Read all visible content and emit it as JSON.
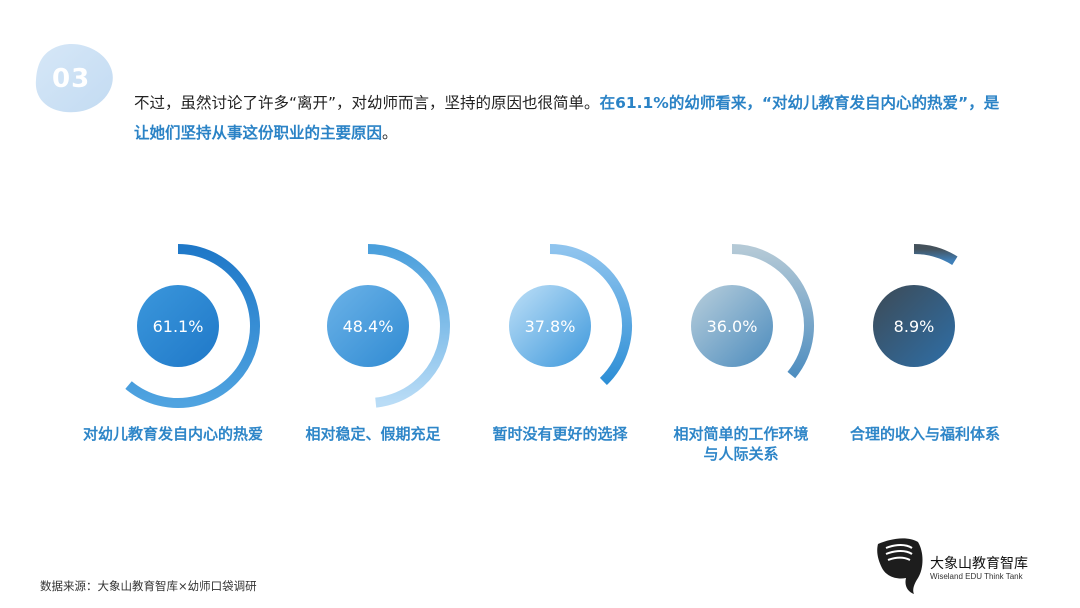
{
  "section_number": "03",
  "intro": {
    "plain_1": "不过，虽然讨论了许多“离开”，对幼师而言，坚持的原因也很简单。",
    "highlight_1": "在61.1%的幼师看来，“对幼儿教育发自内心的热爱”，是让她们坚持从事这份职业的主要原因",
    "plain_2": "。"
  },
  "chart_data": {
    "type": "radial-progress",
    "categories": [
      "对幼儿教育发自内心的热爱",
      "相对稳定、假期充足",
      "暂时没有更好的选择",
      "相对简单的工作环境与人际关系",
      "合理的收入与福利体系"
    ],
    "values": [
      61.1,
      48.4,
      37.8,
      36.0,
      8.9
    ],
    "value_labels": [
      "61.1%",
      "48.4%",
      "37.8%",
      "36.0%",
      "8.9%"
    ],
    "unit": "%",
    "colors": {
      "ring_gradients": [
        [
          "#1f78c8",
          "#4fa3e0"
        ],
        [
          "#4a9fdc",
          "#b9dcf6"
        ],
        [
          "#8fc4ee",
          "#2e8fd6"
        ],
        [
          "#b4c9d6",
          "#4f8ec0"
        ],
        [
          "#45525c",
          "#3f7fb8"
        ]
      ],
      "circle_gradients": [
        [
          "#3b97dc",
          "#1f78c8"
        ],
        [
          "#6cb3e8",
          "#2f8ad2"
        ],
        [
          "#bfe0f7",
          "#3d98dc"
        ],
        [
          "#b9cfdc",
          "#4b8bbd"
        ],
        [
          "#3d4a55",
          "#2e6fa8"
        ]
      ]
    }
  },
  "labels": {
    "c1": "对幼儿教育发自内心的热爱",
    "c2": "相对稳定、假期充足",
    "c3": "暂时没有更好的选择",
    "c4_line1": "相对简单的工作环境",
    "c4_line2": "与人际关系",
    "c5": "合理的收入与福利体系"
  },
  "source": "数据来源：大象山教育智库×幼师口袋调研",
  "logo": {
    "name_cn": "大象山教育智库",
    "name_en": "Wiseland EDU Think Tank",
    "icon": "elephant-icon"
  },
  "accent_color": "#2b83c6"
}
